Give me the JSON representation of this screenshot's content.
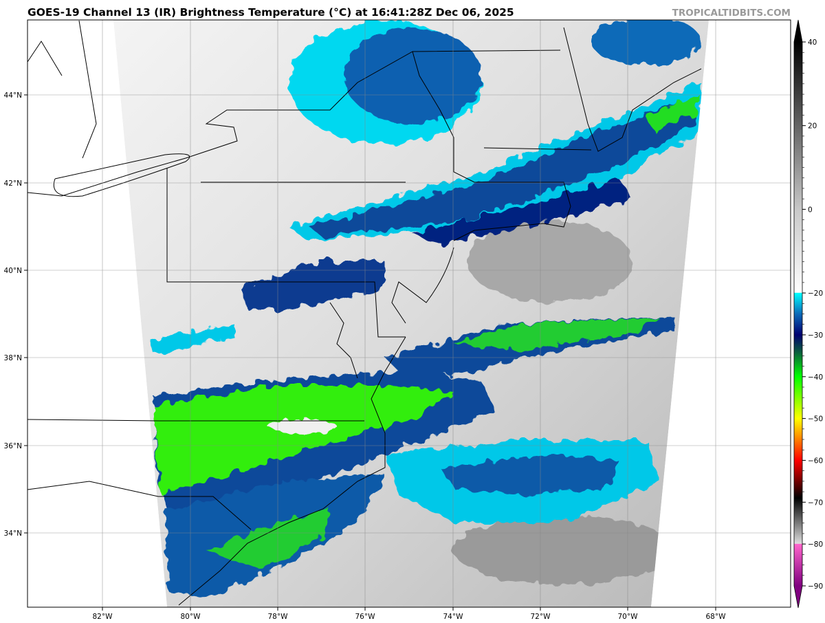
{
  "title": "GOES-19 Channel 13 (IR) Brightness Temperature (°C) at 16:41:28Z Dec 06, 2025",
  "credit": "TROPICALTIDBITS.COM",
  "map": {
    "longitude_labels": [
      "82°W",
      "80°W",
      "78°W",
      "76°W",
      "74°W",
      "72°W",
      "70°W",
      "68°W"
    ],
    "latitude_labels": [
      "44°N",
      "42°N",
      "40°N",
      "38°N",
      "36°N",
      "34°N"
    ],
    "gridlines": true
  },
  "colorbar": {
    "labels": [
      "40",
      "20",
      "0",
      "−20",
      "−30",
      "−40",
      "−50",
      "−60",
      "−70",
      "−80",
      "−90"
    ],
    "values": [
      40,
      20,
      0,
      -20,
      -30,
      -40,
      -50,
      -60,
      -70,
      -80,
      -90
    ],
    "range": [
      -90,
      40
    ],
    "extend": "both",
    "stops": [
      {
        "v": 40,
        "c": "#000000"
      },
      {
        "v": 0,
        "c": "#c8c8c8"
      },
      {
        "v": -19.9,
        "c": "#ffffff"
      },
      {
        "v": -20,
        "c": "#00ffff"
      },
      {
        "v": -25,
        "c": "#0a6ab8"
      },
      {
        "v": -30,
        "c": "#000070"
      },
      {
        "v": -34,
        "c": "#0a5a40"
      },
      {
        "v": -40,
        "c": "#00ff00"
      },
      {
        "v": -50,
        "c": "#ffff00"
      },
      {
        "v": -55,
        "c": "#ff8000"
      },
      {
        "v": -60,
        "c": "#ff0000"
      },
      {
        "v": -69,
        "c": "#000000"
      },
      {
        "v": -79.9,
        "c": "#dddddd"
      },
      {
        "v": -80,
        "c": "#ff66cc"
      },
      {
        "v": -90,
        "c": "#800080"
      }
    ]
  }
}
